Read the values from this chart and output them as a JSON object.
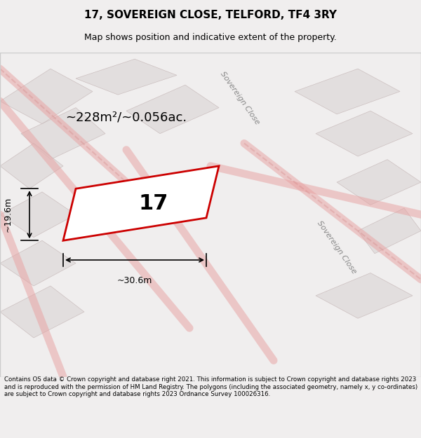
{
  "title_line1": "17, SOVEREIGN CLOSE, TELFORD, TF4 3RY",
  "title_line2": "Map shows position and indicative extent of the property.",
  "footer_text": "Contains OS data © Crown copyright and database right 2021. This information is subject to Crown copyright and database rights 2023 and is reproduced with the permission of HM Land Registry. The polygons (including the associated geometry, namely x, y co-ordinates) are subject to Crown copyright and database rights 2023 Ordnance Survey 100026316.",
  "area_text": "~228m²/~0.056ac.",
  "plot_number": "17",
  "dim_width": "~30.6m",
  "dim_height": "~19.6m",
  "bg_color": "#f0eeee",
  "map_bg_color": "#f5f3f3",
  "plot_fill": "#ffffff",
  "plot_edge_color": "#cc0000",
  "road_label1": "Sovereign Close",
  "road_label2": "Sovereign Close",
  "background_polygon_color": "#e8e4e4",
  "light_red": "#e8c0c0"
}
